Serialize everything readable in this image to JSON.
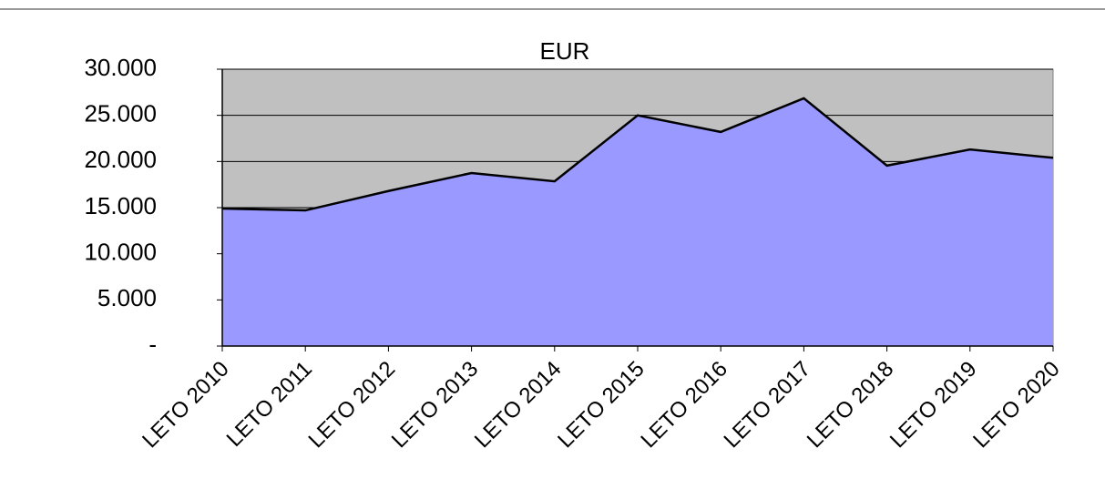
{
  "chart_data": {
    "type": "area",
    "title": "EUR",
    "categories": [
      "LETO 2010",
      "LETO 2011",
      "LETO 2012",
      "LETO 2013",
      "LETO 2014",
      "LETO 2015",
      "LETO 2016",
      "LETO 2017",
      "LETO 2018",
      "LETO 2019",
      "LETO 2020"
    ],
    "values": [
      14900,
      14700,
      16800,
      18750,
      17850,
      25000,
      23200,
      26850,
      19550,
      21300,
      20400
    ],
    "color": "#9999ff",
    "line_color": "#000000",
    "plot_background": "#c0c0c0",
    "ylim": [
      0,
      30000
    ],
    "yticks": [
      {
        "value": 0,
        "label": "-"
      },
      {
        "value": 5000,
        "label": "5.000"
      },
      {
        "value": 10000,
        "label": "10.000"
      },
      {
        "value": 15000,
        "label": "15.000"
      },
      {
        "value": 20000,
        "label": "20.000"
      },
      {
        "value": 25000,
        "label": "25.000"
      },
      {
        "value": 30000,
        "label": "30.000"
      }
    ],
    "grid": true
  }
}
